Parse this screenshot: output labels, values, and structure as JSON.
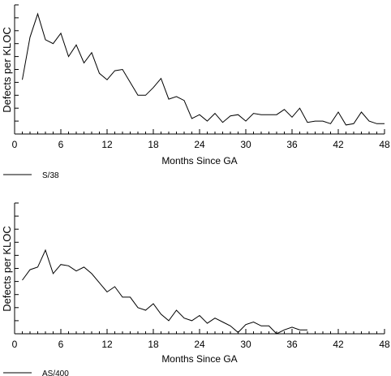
{
  "chart_data": [
    {
      "type": "line",
      "xlabel": "Months Since GA",
      "ylabel": "Defects per KLOC",
      "xlim": [
        0,
        48
      ],
      "xticks": [
        "0",
        "6",
        "12",
        "18",
        "24",
        "30",
        "36",
        "42",
        "48"
      ],
      "y_ticks_labeled": false,
      "grid": false,
      "legend_position": "bottom-left",
      "series": [
        {
          "name": "S/38",
          "x": [
            1,
            2,
            3,
            4,
            5,
            6,
            7,
            8,
            9,
            10,
            11,
            12,
            13,
            14,
            15,
            16,
            17,
            18,
            19,
            20,
            21,
            22,
            23,
            24,
            25,
            26,
            27,
            28,
            29,
            30,
            31,
            32,
            33,
            34,
            35,
            36,
            37,
            38,
            39,
            40,
            41,
            42,
            43,
            44,
            45,
            46,
            47,
            48
          ],
          "values": [
            4.2,
            7.5,
            9.3,
            7.3,
            7.0,
            7.8,
            6.0,
            6.9,
            5.5,
            6.3,
            4.7,
            4.2,
            4.9,
            5.0,
            4.0,
            3.0,
            3.0,
            3.6,
            4.3,
            2.7,
            2.9,
            2.6,
            1.2,
            1.5,
            1.0,
            1.6,
            0.9,
            1.4,
            1.5,
            1.0,
            1.6,
            1.5,
            1.5,
            1.5,
            1.9,
            1.3,
            2.0,
            0.9,
            1.0,
            1.0,
            0.8,
            1.7,
            0.7,
            0.8,
            1.7,
            1.0,
            0.8,
            0.8
          ]
        },
        {
          "name": "AS/400",
          "x": [
            1,
            2,
            3,
            4,
            5,
            6,
            7,
            8,
            9,
            10,
            11,
            12,
            13,
            14,
            15,
            16,
            17,
            18,
            19,
            20,
            21,
            22,
            23,
            24,
            25,
            26,
            27,
            28,
            29,
            30,
            31,
            32,
            33,
            34,
            35,
            36,
            37,
            38
          ],
          "values": [
            4.1,
            4.9,
            5.1,
            6.4,
            4.6,
            5.3,
            5.2,
            4.8,
            5.1,
            4.6,
            3.9,
            3.2,
            3.6,
            2.8,
            2.8,
            2.0,
            1.8,
            2.3,
            1.5,
            1.0,
            1.8,
            1.2,
            1.0,
            1.4,
            0.8,
            1.2,
            0.9,
            0.6,
            0.1,
            0.7,
            0.9,
            0.6,
            0.6,
            0.0,
            0.3,
            0.5,
            0.3,
            0.3
          ]
        }
      ]
    }
  ]
}
